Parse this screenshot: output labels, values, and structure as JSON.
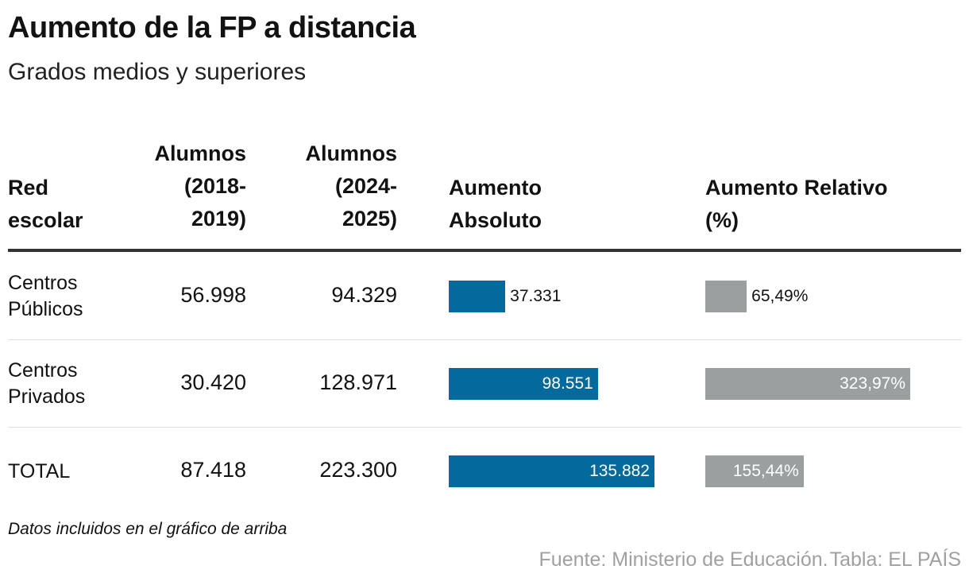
{
  "title": "Aumento de la FP a distancia",
  "subtitle": "Grados medios y superiores",
  "headers": {
    "red_escolar": [
      "Red",
      "escolar"
    ],
    "alumnos_2018": [
      "Alumnos",
      "(2018-",
      "2019)"
    ],
    "alumnos_2024": [
      "Alumnos",
      "(2024-",
      "2025)"
    ],
    "aumento_absoluto": [
      "Aumento",
      "Absoluto"
    ],
    "aumento_relativo": [
      "Aumento Relativo",
      "(%)"
    ]
  },
  "note": "Datos incluidos en el gráfico de arriba",
  "source": {
    "fuente": "Fuente: Ministerio de Educación.",
    "tabla": "Tabla: EL PAÍS"
  },
  "colors": {
    "absolute_bar": "#04699b",
    "relative_bar": "#99a09f"
  },
  "chart_data": {
    "type": "table",
    "title": "Aumento de la FP a distancia",
    "subtitle": "Grados medios y superiores",
    "columns": [
      "Red escolar",
      "Alumnos (2018-2019)",
      "Alumnos (2024-2025)",
      "Aumento Absoluto",
      "Aumento Relativo (%)"
    ],
    "rows": [
      {
        "name_lines": [
          "Centros",
          "Públicos"
        ],
        "alumnos_2018": "56.998",
        "alumnos_2024": "94.329",
        "abs_label": "37.331",
        "abs_value": 37331,
        "rel_label": "65,49%",
        "rel_value": 65.49
      },
      {
        "name_lines": [
          "Centros",
          "Privados"
        ],
        "alumnos_2018": "30.420",
        "alumnos_2024": "128.971",
        "abs_label": "98.551",
        "abs_value": 98551,
        "rel_label": "323,97%",
        "rel_value": 323.97
      },
      {
        "name_lines": [
          "TOTAL"
        ],
        "alumnos_2018": "87.418",
        "alumnos_2024": "223.300",
        "abs_label": "135.882",
        "abs_value": 135882,
        "rel_label": "155,44%",
        "rel_value": 155.44
      }
    ]
  }
}
